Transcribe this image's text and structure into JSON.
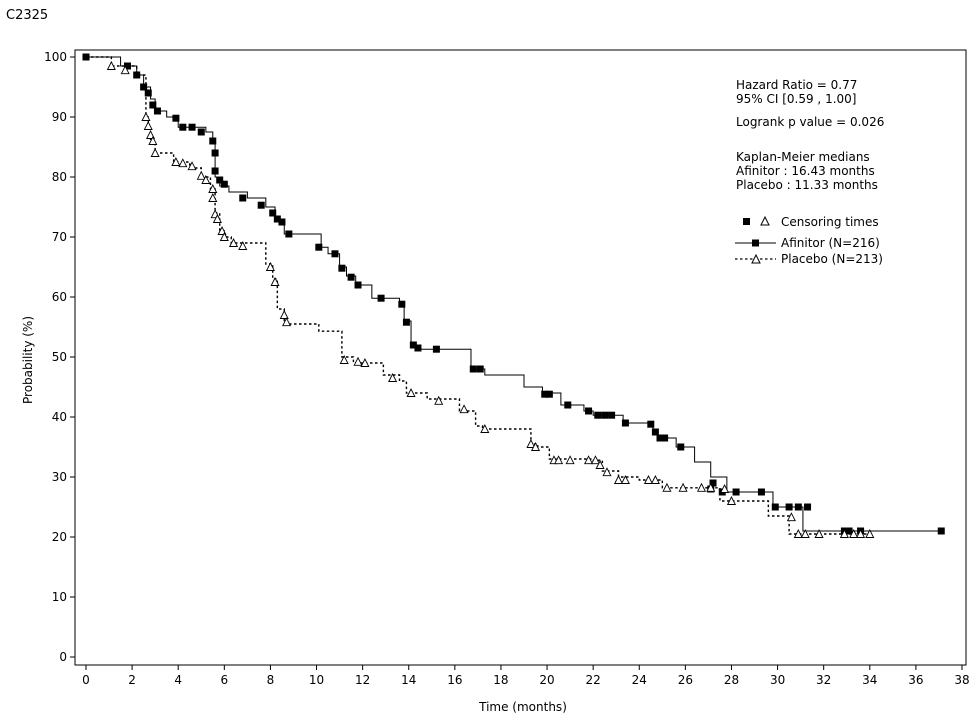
{
  "figure_label": "C2325",
  "chart_data": {
    "type": "line",
    "title": "",
    "xlabel": "Time (months)",
    "ylabel": "Probability (%)",
    "xlim": [
      0,
      38
    ],
    "ylim": [
      0,
      100
    ],
    "x_ticks": [
      "0",
      "2",
      "4",
      "6",
      "8",
      "10",
      "12",
      "14",
      "16",
      "18",
      "20",
      "22",
      "24",
      "26",
      "28",
      "30",
      "32",
      "34",
      "36",
      "38"
    ],
    "y_ticks": [
      "0",
      "10",
      "20",
      "30",
      "40",
      "50",
      "60",
      "70",
      "80",
      "90",
      "100"
    ],
    "grid": false,
    "annotations": {
      "hazard_ratio": "Hazard Ratio = 0.77",
      "ci": "95% CI [0.59 , 1.00]",
      "logrank": "Logrank p value = 0.026",
      "km_title": "Kaplan-Meier medians",
      "km_afinitor": "Afinitor : 16.43 months",
      "km_placebo": "Placebo : 11.33 months"
    },
    "legend": {
      "position": "top-right",
      "censoring_label": "Censoring times",
      "afinitor_label": "Afinitor (N=216)",
      "placebo_label": "Placebo (N=213)"
    },
    "series": [
      {
        "name": "Afinitor (N=216)",
        "line": "solid",
        "marker": "filled-square",
        "steps": [
          [
            0,
            100
          ],
          [
            1.5,
            98.5
          ],
          [
            2.2,
            97
          ],
          [
            2.5,
            95
          ],
          [
            2.8,
            93
          ],
          [
            3,
            91
          ],
          [
            3.5,
            90
          ],
          [
            4,
            88.3
          ],
          [
            5.2,
            87.5
          ],
          [
            5.5,
            86
          ],
          [
            5.6,
            80
          ],
          [
            5.8,
            78.5
          ],
          [
            6.2,
            77.5
          ],
          [
            7,
            76.5
          ],
          [
            7.8,
            75
          ],
          [
            8.2,
            73
          ],
          [
            8.6,
            70.5
          ],
          [
            10.2,
            68.3
          ],
          [
            10.5,
            67.2
          ],
          [
            11,
            65
          ],
          [
            11.3,
            63.5
          ],
          [
            11.7,
            62
          ],
          [
            12.4,
            59.8
          ],
          [
            13.6,
            59
          ],
          [
            13.8,
            56
          ],
          [
            14.1,
            52
          ],
          [
            14.5,
            51.3
          ],
          [
            16.7,
            48
          ],
          [
            17.3,
            47
          ],
          [
            19,
            45
          ],
          [
            19.8,
            44
          ],
          [
            20.6,
            42
          ],
          [
            21.6,
            41
          ],
          [
            22,
            40.3
          ],
          [
            23.3,
            39
          ],
          [
            24.6,
            37.5
          ],
          [
            24.8,
            36.5
          ],
          [
            25.6,
            35
          ],
          [
            26.4,
            32.5
          ],
          [
            27.1,
            30
          ],
          [
            27.8,
            27.5
          ],
          [
            29.8,
            25
          ],
          [
            31.1,
            21
          ],
          [
            37,
            21
          ]
        ],
        "censored": [
          [
            0,
            100
          ],
          [
            1.8,
            98.5
          ],
          [
            2.2,
            97
          ],
          [
            2.5,
            95
          ],
          [
            2.7,
            94
          ],
          [
            2.9,
            92
          ],
          [
            3.1,
            91
          ],
          [
            3.9,
            89.8
          ],
          [
            4.2,
            88.3
          ],
          [
            4.6,
            88.3
          ],
          [
            5,
            87.5
          ],
          [
            5.5,
            86
          ],
          [
            5.6,
            84
          ],
          [
            5.6,
            81
          ],
          [
            5.8,
            79.5
          ],
          [
            6,
            78.8
          ],
          [
            6.8,
            76.5
          ],
          [
            7.6,
            75.3
          ],
          [
            8.1,
            74
          ],
          [
            8.3,
            73
          ],
          [
            8.5,
            72.5
          ],
          [
            8.8,
            70.5
          ],
          [
            10.1,
            68.3
          ],
          [
            10.8,
            67.2
          ],
          [
            11.1,
            64.8
          ],
          [
            11.5,
            63.3
          ],
          [
            11.8,
            62
          ],
          [
            12.8,
            59.8
          ],
          [
            13.7,
            58.8
          ],
          [
            13.9,
            55.8
          ],
          [
            14.2,
            52
          ],
          [
            14.4,
            51.5
          ],
          [
            15.2,
            51.3
          ],
          [
            16.8,
            48
          ],
          [
            17.1,
            48
          ],
          [
            19.9,
            43.8
          ],
          [
            20.1,
            43.8
          ],
          [
            20.9,
            42
          ],
          [
            21.8,
            41
          ],
          [
            22.2,
            40.3
          ],
          [
            22.5,
            40.3
          ],
          [
            22.8,
            40.3
          ],
          [
            23.4,
            39
          ],
          [
            24.5,
            38.8
          ],
          [
            24.7,
            37.5
          ],
          [
            24.9,
            36.5
          ],
          [
            25.1,
            36.5
          ],
          [
            25.8,
            35
          ],
          [
            27.2,
            29
          ],
          [
            27.1,
            28
          ],
          [
            27.6,
            27.5
          ],
          [
            28.2,
            27.5
          ],
          [
            29.3,
            27.5
          ],
          [
            29.9,
            25
          ],
          [
            30.5,
            25
          ],
          [
            30.9,
            25
          ],
          [
            31.3,
            25
          ],
          [
            32.9,
            21
          ],
          [
            33.1,
            21
          ],
          [
            33.6,
            21
          ],
          [
            37.1,
            21
          ]
        ]
      },
      {
        "name": "Placebo (N=213)",
        "line": "dotted",
        "marker": "open-triangle",
        "steps": [
          [
            0,
            100
          ],
          [
            1.1,
            98.5
          ],
          [
            2.2,
            97
          ],
          [
            2.6,
            90
          ],
          [
            2.7,
            88
          ],
          [
            2.8,
            86
          ],
          [
            3,
            84
          ],
          [
            3.8,
            82.5
          ],
          [
            4.5,
            81.5
          ],
          [
            5,
            80
          ],
          [
            5.4,
            78
          ],
          [
            5.6,
            74
          ],
          [
            5.8,
            71
          ],
          [
            6,
            70
          ],
          [
            6.3,
            69
          ],
          [
            7.8,
            65.5
          ],
          [
            8.1,
            63
          ],
          [
            8.3,
            58
          ],
          [
            8.6,
            55.5
          ],
          [
            10.1,
            54.3
          ],
          [
            11.1,
            50
          ],
          [
            11.6,
            49
          ],
          [
            12.9,
            47
          ],
          [
            13.6,
            46
          ],
          [
            13.9,
            44
          ],
          [
            14.8,
            43
          ],
          [
            16.2,
            41
          ],
          [
            16.9,
            38.5
          ],
          [
            17.2,
            38
          ],
          [
            19.3,
            35.5
          ],
          [
            19.6,
            35
          ],
          [
            20.1,
            33
          ],
          [
            22,
            32.8
          ],
          [
            22.4,
            31
          ],
          [
            23.1,
            30
          ],
          [
            24,
            29.5
          ],
          [
            25,
            28.2
          ],
          [
            25.6,
            28.2
          ],
          [
            27.5,
            26
          ],
          [
            27.9,
            26
          ],
          [
            29.6,
            23.5
          ],
          [
            30.5,
            20.5
          ],
          [
            34,
            20.5
          ]
        ],
        "censored": [
          [
            1.1,
            98.5
          ],
          [
            1.7,
            97.8
          ],
          [
            2.6,
            90
          ],
          [
            2.7,
            88.5
          ],
          [
            2.8,
            87
          ],
          [
            2.9,
            86
          ],
          [
            3,
            84
          ],
          [
            3.9,
            82.5
          ],
          [
            4.2,
            82.3
          ],
          [
            4.6,
            81.8
          ],
          [
            5,
            80.2
          ],
          [
            5.2,
            79.5
          ],
          [
            5.5,
            78
          ],
          [
            5.5,
            76.5
          ],
          [
            5.6,
            73.8
          ],
          [
            5.7,
            73
          ],
          [
            5.9,
            71
          ],
          [
            6,
            70
          ],
          [
            6.4,
            69
          ],
          [
            6.8,
            68.5
          ],
          [
            8,
            65
          ],
          [
            8.2,
            62.5
          ],
          [
            8.6,
            57
          ],
          [
            8.7,
            55.8
          ],
          [
            11.2,
            49.5
          ],
          [
            11.8,
            49.2
          ],
          [
            12.1,
            49
          ],
          [
            13.3,
            46.5
          ],
          [
            14.1,
            44
          ],
          [
            15.3,
            42.7
          ],
          [
            16.4,
            41.3
          ],
          [
            17.3,
            38
          ],
          [
            19.3,
            35.5
          ],
          [
            19.5,
            35
          ],
          [
            20.3,
            32.8
          ],
          [
            20.5,
            32.8
          ],
          [
            21,
            32.8
          ],
          [
            21.8,
            32.8
          ],
          [
            22.1,
            32.8
          ],
          [
            22.3,
            32
          ],
          [
            22.6,
            30.8
          ],
          [
            23.1,
            29.5
          ],
          [
            23.4,
            29.5
          ],
          [
            24.4,
            29.5
          ],
          [
            24.7,
            29.5
          ],
          [
            25.2,
            28.2
          ],
          [
            25.9,
            28.2
          ],
          [
            26.7,
            28.2
          ],
          [
            27.1,
            28.2
          ],
          [
            27.7,
            28
          ],
          [
            28,
            26
          ],
          [
            30.6,
            23.3
          ],
          [
            30.9,
            20.5
          ],
          [
            31.2,
            20.5
          ],
          [
            31.8,
            20.5
          ],
          [
            32.9,
            20.5
          ],
          [
            33.3,
            20.5
          ],
          [
            33.6,
            20.5
          ],
          [
            34,
            20.5
          ]
        ]
      }
    ]
  }
}
